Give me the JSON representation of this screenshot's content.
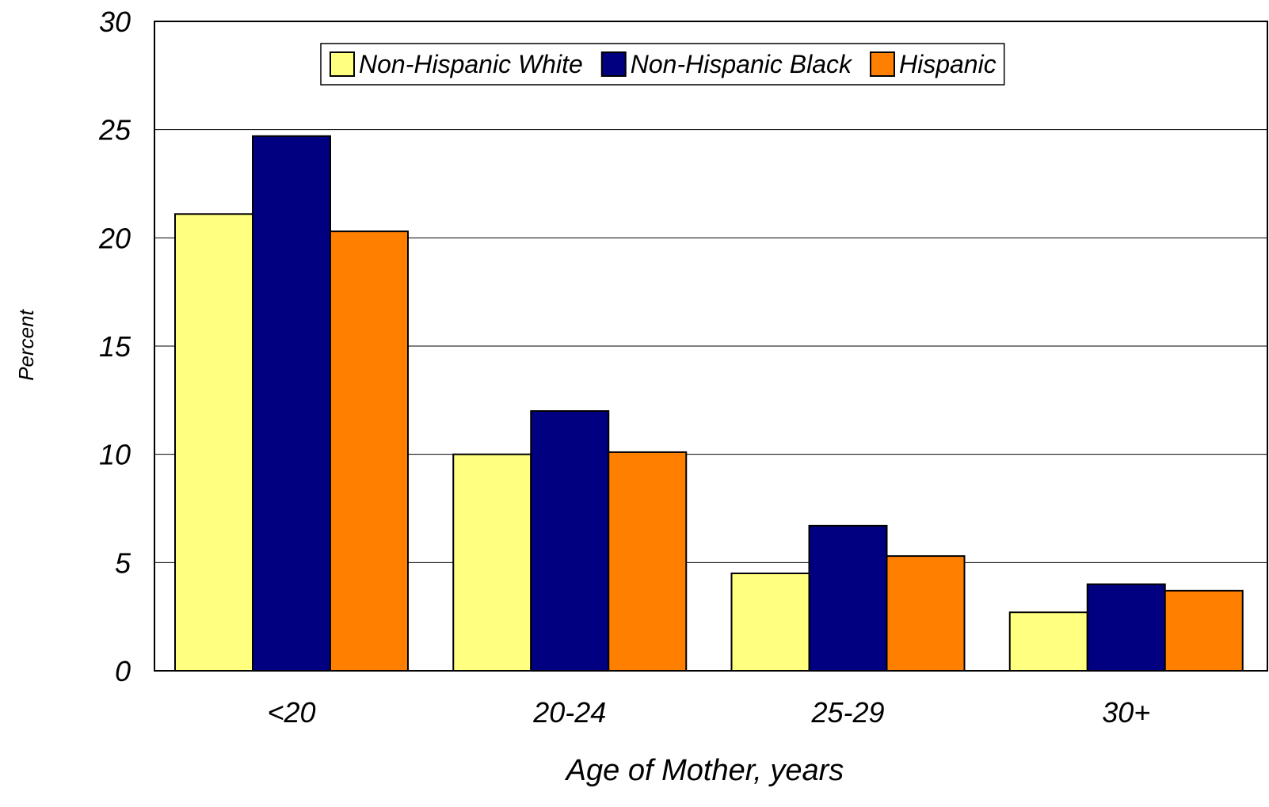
{
  "chart_data": {
    "type": "bar",
    "title": "",
    "xlabel": "Age of Mother, years",
    "ylabel": "Percent",
    "categories": [
      "<20",
      "20-24",
      "25-29",
      "30+"
    ],
    "series": [
      {
        "name": "Non-Hispanic White",
        "color": "#FFFF80",
        "values": [
          21.1,
          10.0,
          4.5,
          2.7
        ]
      },
      {
        "name": "Non-Hispanic Black",
        "color": "#000080",
        "values": [
          24.7,
          12.0,
          6.7,
          4.0
        ]
      },
      {
        "name": "Hispanic",
        "color": "#FF8000",
        "values": [
          20.3,
          10.1,
          5.3,
          3.7
        ]
      }
    ],
    "ylim": [
      0,
      30
    ],
    "yticks": [
      "0",
      "5",
      "10",
      "15",
      "20",
      "25",
      "30"
    ],
    "grid": true,
    "legend_position": "top-center"
  }
}
